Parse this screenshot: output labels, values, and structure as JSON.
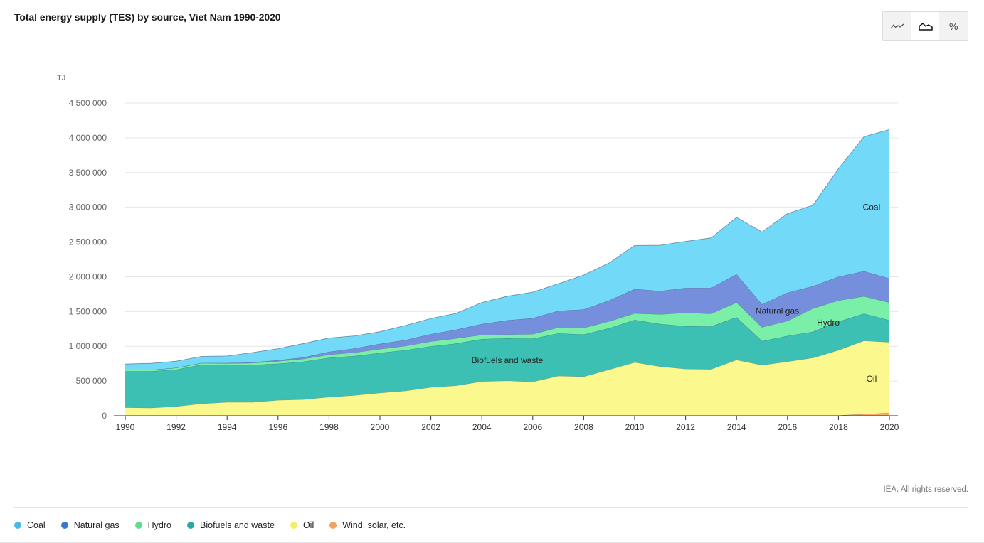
{
  "header": {
    "title": "Total energy supply (TES) by source, Viet Nam 1990-2020"
  },
  "toolbar": {
    "buttons": [
      {
        "name": "line-view",
        "icon": "line-chart-icon"
      },
      {
        "name": "area-view",
        "icon": "area-chart-icon",
        "active": true
      },
      {
        "name": "percent-view",
        "icon": "percent-icon",
        "label": "%"
      }
    ]
  },
  "footer": {
    "credit": "IEA. All rights reserved."
  },
  "chart_data": {
    "type": "area",
    "stacked": true,
    "title": "Total energy supply (TES) by source, Viet Nam 1990-2020",
    "ylabel": "TJ",
    "ylim": [
      0,
      4500000
    ],
    "yticks": [
      0,
      500000,
      1000000,
      1500000,
      2000000,
      2500000,
      3000000,
      3500000,
      4000000,
      4500000
    ],
    "ytick_labels": [
      "0",
      "500 000",
      "1 000 000",
      "1 500 000",
      "2 000 000",
      "2 500 000",
      "3 000 000",
      "3 500 000",
      "4 000 000",
      "4 500 000"
    ],
    "xlim": [
      1990,
      2020
    ],
    "xticks": [
      "1990",
      "1992",
      "1994",
      "1996",
      "1998",
      "2000",
      "2002",
      "2004",
      "2006",
      "2008",
      "2010",
      "2012",
      "2014",
      "2016",
      "2018",
      "2020"
    ],
    "grid": true,
    "legend_position": "bottom-left",
    "x": [
      1990,
      1991,
      1992,
      1993,
      1994,
      1995,
      1996,
      1997,
      1998,
      1999,
      2000,
      2001,
      2002,
      2003,
      2004,
      2005,
      2006,
      2007,
      2008,
      2009,
      2010,
      2011,
      2012,
      2013,
      2014,
      2015,
      2016,
      2017,
      2018,
      2019,
      2020
    ],
    "series": [
      {
        "name": "Wind, solar, etc.",
        "color": "#f5a96b",
        "values": [
          0,
          0,
          0,
          0,
          0,
          0,
          0,
          0,
          0,
          0,
          0,
          0,
          0,
          0,
          0,
          0,
          0,
          0,
          0,
          0,
          0,
          0,
          0,
          0,
          0,
          0,
          0,
          0,
          5000,
          25000,
          40000
        ]
      },
      {
        "name": "Oil",
        "color": "#fbf88e",
        "values": [
          120000,
          115000,
          135000,
          175000,
          195000,
          195000,
          225000,
          235000,
          270000,
          295000,
          330000,
          360000,
          410000,
          435000,
          495000,
          505000,
          490000,
          575000,
          565000,
          665000,
          770000,
          710000,
          675000,
          670000,
          805000,
          730000,
          780000,
          835000,
          940000,
          1055000,
          1020000
        ]
      },
      {
        "name": "Biofuels and waste",
        "color": "#3cc0b4",
        "values": [
          520000,
          525000,
          530000,
          560000,
          535000,
          535000,
          525000,
          545000,
          565000,
          565000,
          575000,
          585000,
          590000,
          605000,
          610000,
          610000,
          620000,
          610000,
          605000,
          595000,
          610000,
          610000,
          615000,
          615000,
          615000,
          345000,
          370000,
          375000,
          410000,
          390000,
          315000
        ]
      },
      {
        "name": "Hydro",
        "color": "#7aefa8",
        "values": [
          20000,
          20000,
          25000,
          25000,
          25000,
          30000,
          35000,
          40000,
          45000,
          50000,
          55000,
          60000,
          70000,
          75000,
          60000,
          55000,
          65000,
          85000,
          95000,
          100000,
          95000,
          140000,
          195000,
          185000,
          210000,
          200000,
          215000,
          335000,
          305000,
          250000,
          255000
        ]
      },
      {
        "name": "Natural gas",
        "color": "#758fdd",
        "values": [
          0,
          0,
          0,
          0,
          5000,
          10000,
          15000,
          20000,
          40000,
          60000,
          75000,
          85000,
          105000,
          125000,
          155000,
          205000,
          230000,
          240000,
          265000,
          300000,
          350000,
          335000,
          355000,
          370000,
          405000,
          330000,
          405000,
          320000,
          340000,
          360000,
          345000
        ]
      },
      {
        "name": "Coal",
        "color": "#72d9f9",
        "values": [
          85000,
          95000,
          95000,
          95000,
          100000,
          140000,
          165000,
          200000,
          200000,
          180000,
          175000,
          210000,
          225000,
          235000,
          310000,
          345000,
          375000,
          390000,
          495000,
          540000,
          625000,
          660000,
          670000,
          720000,
          820000,
          1040000,
          1140000,
          1165000,
          1555000,
          1935000,
          2145000
        ]
      }
    ],
    "annotations": [
      {
        "text": "Coal",
        "x": 2019.3,
        "y": 3000000
      },
      {
        "text": "Natural gas",
        "x": 2015.6,
        "y": 1510000
      },
      {
        "text": "Hydro",
        "x": 2017.6,
        "y": 1340000
      },
      {
        "text": "Biofuels and waste",
        "x": 2005,
        "y": 800000
      },
      {
        "text": "Oil",
        "x": 2019.3,
        "y": 530000
      }
    ]
  },
  "legend": {
    "items": [
      {
        "label": "Coal",
        "color": "#4bb8e6",
        "icon": "circle-icon"
      },
      {
        "label": "Natural gas",
        "color": "#3a78c8",
        "icon": "circle-icon"
      },
      {
        "label": "Hydro",
        "color": "#5fdb8f",
        "icon": "circle-icon"
      },
      {
        "label": "Biofuels and waste",
        "color": "#28a89e",
        "icon": "circle-icon"
      },
      {
        "label": "Oil",
        "color": "#f3ec6c",
        "icon": "circle-icon"
      },
      {
        "label": "Wind, solar, etc.",
        "color": "#f1a35e",
        "icon": "circle-icon"
      }
    ]
  }
}
